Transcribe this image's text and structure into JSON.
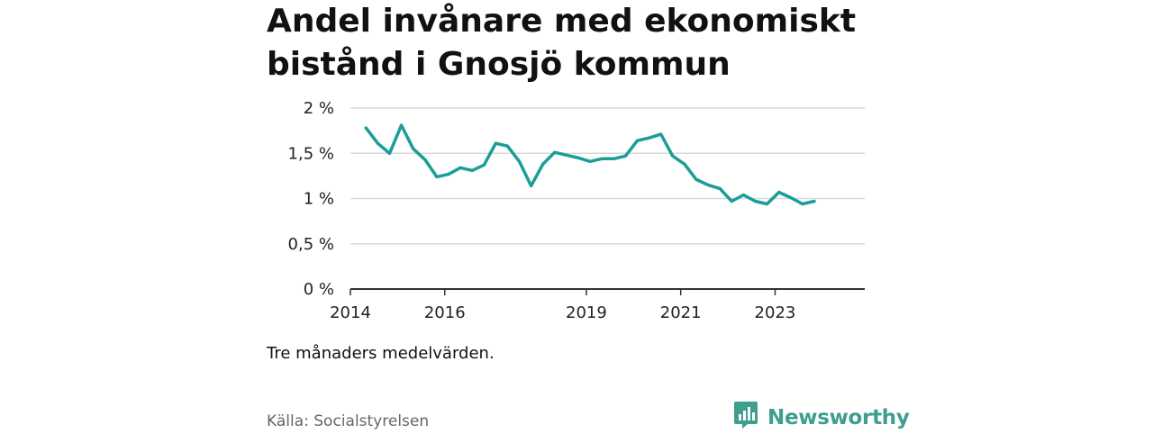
{
  "header": {
    "title": "Andel invånare med ekonomiskt bistånd i Gnosjö kommun"
  },
  "chart_data": {
    "type": "line",
    "title": "Andel invånare med ekonomiskt bistånd i Gnosjö kommun",
    "xlabel": "",
    "ylabel": "",
    "ylim": [
      0,
      2
    ],
    "xlim": [
      2014.0,
      2024.9
    ],
    "y_ticks": [
      0,
      0.5,
      1,
      1.5,
      2
    ],
    "y_tick_labels": [
      "0 %",
      "0,5 %",
      "1 %",
      "1,5 %",
      "2 %"
    ],
    "x_ticks": [
      2014,
      2016,
      2019,
      2021,
      2023
    ],
    "x_tick_labels": [
      "2014",
      "2016",
      "2019",
      "2021",
      "2023"
    ],
    "grid": true,
    "series": [
      {
        "name": "Andel invånare med ekonomiskt bistånd",
        "color": "#1a9e96",
        "x": [
          2014.33,
          2014.58,
          2014.83,
          2015.08,
          2015.33,
          2015.58,
          2015.83,
          2016.08,
          2016.33,
          2016.58,
          2016.83,
          2017.08,
          2017.33,
          2017.58,
          2017.83,
          2018.08,
          2018.33,
          2018.58,
          2018.83,
          2019.08,
          2019.33,
          2019.58,
          2019.83,
          2020.08,
          2020.33,
          2020.58,
          2020.83,
          2021.08,
          2021.33,
          2021.58,
          2021.83,
          2022.08,
          2022.33,
          2022.58,
          2022.83,
          2023.08,
          2023.33,
          2023.58,
          2023.83
        ],
        "values": [
          1.78,
          1.61,
          1.5,
          1.81,
          1.55,
          1.43,
          1.24,
          1.27,
          1.34,
          1.31,
          1.37,
          1.61,
          1.58,
          1.41,
          1.14,
          1.38,
          1.51,
          1.48,
          1.45,
          1.41,
          1.44,
          1.44,
          1.47,
          1.64,
          1.67,
          1.71,
          1.47,
          1.38,
          1.21,
          1.15,
          1.11,
          0.97,
          1.04,
          0.97,
          0.94,
          1.07,
          1.01,
          0.94,
          0.97
        ]
      }
    ]
  },
  "footer": {
    "note": "Tre månaders medelvärden.",
    "source": "Källa: Socialstyrelsen",
    "brand": "Newsworthy"
  },
  "colors": {
    "line": "#1a9e96",
    "brand": "#3f9e8e",
    "grid": "#d9d9d9",
    "axis": "#333333"
  },
  "icons": {
    "logo": "bar-chart-badge-icon"
  }
}
